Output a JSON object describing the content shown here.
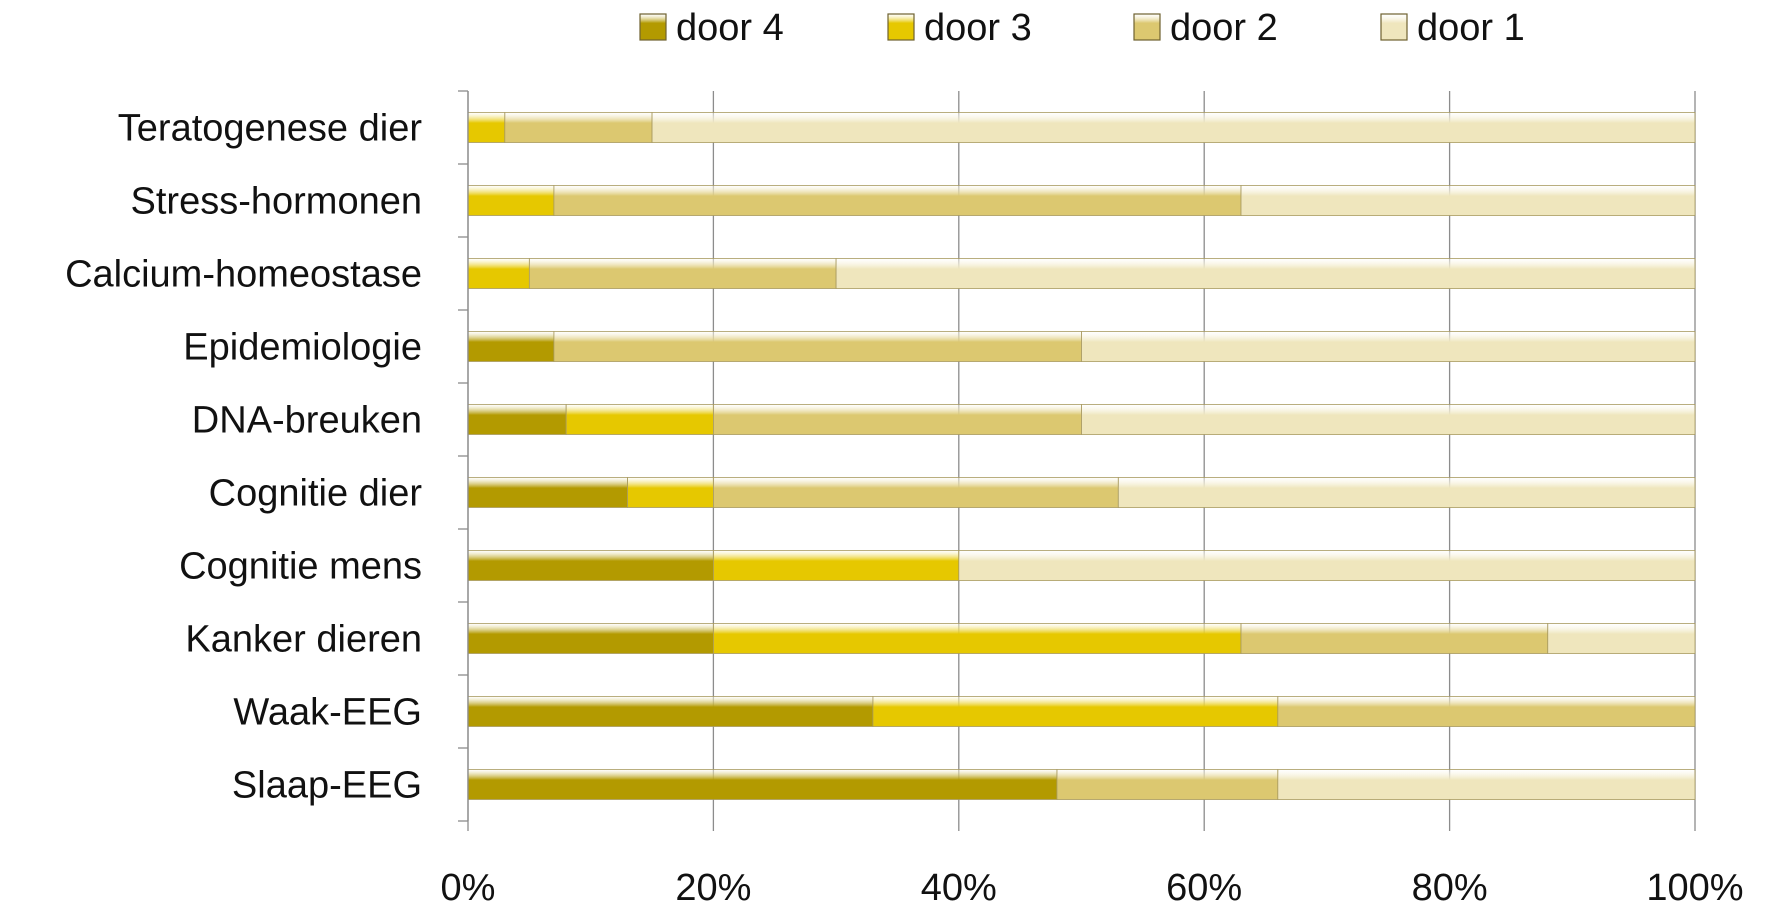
{
  "chart_data": {
    "type": "bar",
    "orientation": "horizontal",
    "stacked": "percent",
    "categories": [
      "Teratogenese dier",
      "Stress-hormonen",
      "Calcium-homeostase",
      "Epidemiologie",
      "DNA-breuken",
      "Cognitie dier",
      "Cognitie mens",
      "Kanker dieren",
      "Waak-EEG",
      "Slaap-EEG"
    ],
    "series": [
      {
        "name": "door 4",
        "values": [
          0,
          0,
          0,
          7,
          8,
          13,
          20,
          20,
          33,
          48
        ],
        "color": "#b39a00"
      },
      {
        "name": "door 3",
        "values": [
          3,
          7,
          5,
          0,
          12,
          7,
          20,
          43,
          33,
          0
        ],
        "color": "#e6c800"
      },
      {
        "name": "door 2",
        "values": [
          12,
          56,
          25,
          43,
          30,
          33,
          0,
          25,
          34,
          18
        ],
        "color": "#dcc870"
      },
      {
        "name": "door 1",
        "values": [
          85,
          37,
          70,
          50,
          50,
          47,
          60,
          12,
          0,
          34
        ],
        "color": "#efe6bd"
      }
    ],
    "xlim": [
      0,
      100
    ],
    "xticks": [
      "0%",
      "20%",
      "40%",
      "60%",
      "80%",
      "100%"
    ],
    "grid": true,
    "legend": "top",
    "title": "",
    "xlabel": "",
    "ylabel": ""
  }
}
